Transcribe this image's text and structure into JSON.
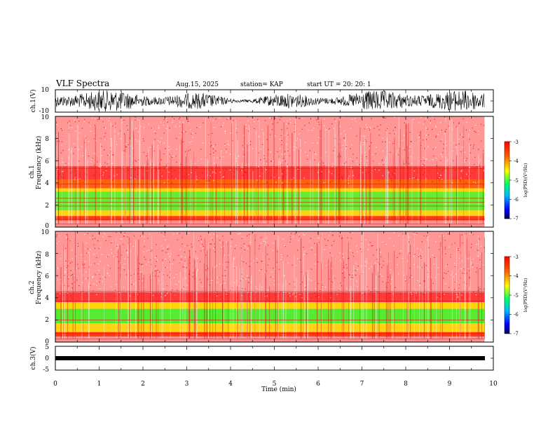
{
  "header": {
    "title": "VLF Spectra",
    "date": "Aug.15, 2025",
    "station": "station= KAP",
    "start": "start  UT  =  20: 20: 1"
  },
  "chart_data": [
    {
      "type": "line",
      "name": "ch1-waveform",
      "ylabel": "ch.1(V)",
      "ylim": [
        -10,
        10
      ],
      "yticks": [
        "10",
        "-10"
      ],
      "xlim": [
        0,
        10
      ]
    },
    {
      "type": "heatmap",
      "name": "ch1-spectrogram",
      "ylabel_line1": "ch.1",
      "ylabel_line2": "Frequency  (kHz)",
      "ylim": [
        0,
        10
      ],
      "yticks": [
        "0",
        "2",
        "4",
        "6",
        "8",
        "10"
      ],
      "xlim": [
        0,
        10
      ],
      "colorbar": {
        "label": "log(PSD)(V²/Hz)",
        "ticks": [
          "-3",
          "-4",
          "-5",
          "-6",
          "-7"
        ],
        "range": [
          -7,
          -3
        ]
      }
    },
    {
      "type": "heatmap",
      "name": "ch2-spectrogram",
      "ylabel_line1": "ch.2",
      "ylabel_line2": "Frequency  (kHz)",
      "ylim": [
        0,
        10
      ],
      "yticks": [
        "0",
        "2",
        "4",
        "6",
        "8",
        "10"
      ],
      "xlim": [
        0,
        10
      ],
      "colorbar": {
        "label": "log(PSD)(V²/Hz)",
        "ticks": [
          "-3",
          "-4",
          "-5",
          "-6",
          "-7"
        ],
        "range": [
          -7,
          -3
        ]
      }
    },
    {
      "type": "line",
      "name": "ch3-waveform",
      "ylabel": "ch.3(V)",
      "ylim": [
        -5,
        5
      ],
      "yticks": [
        "5",
        "0",
        "-5"
      ],
      "xlim": [
        0,
        10
      ]
    }
  ],
  "xaxis": {
    "label": "Time  (min)",
    "ticks": [
      "0",
      "1",
      "2",
      "3",
      "4",
      "5",
      "6",
      "7",
      "8",
      "9",
      "10"
    ],
    "data_end_min": 9.8
  },
  "colors": {
    "ridge": "#ff0000",
    "mid": "#ffd400",
    "green": "#33ee22",
    "background_noise": "#ff3333"
  }
}
